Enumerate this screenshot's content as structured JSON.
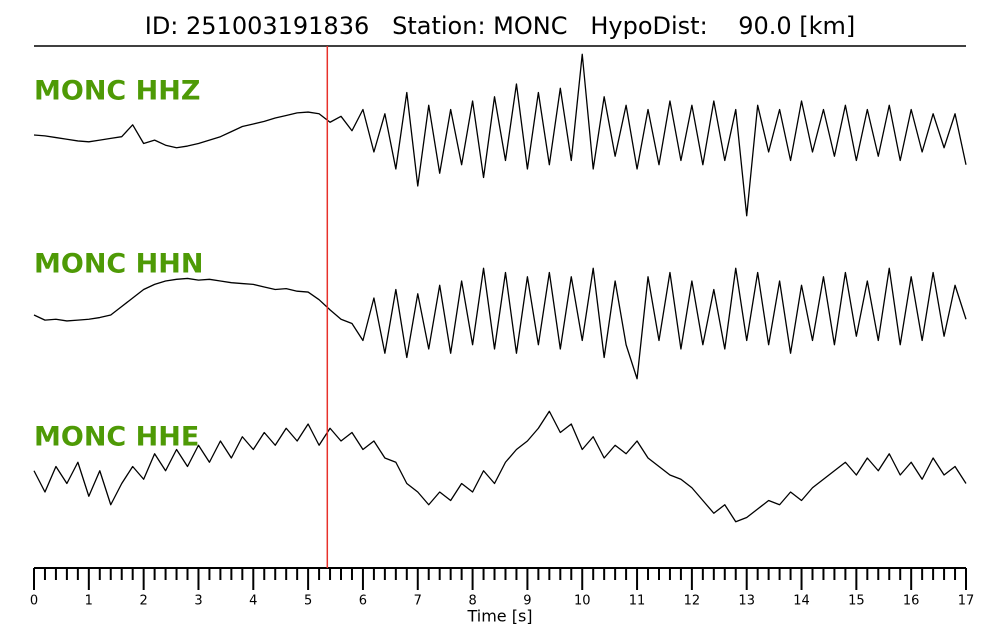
{
  "chart_data": {
    "type": "seismogram",
    "title": "ID: 251003191836   Station: MONC   HypoDist:    90.0 [km]",
    "xlabel": "Time [s]",
    "xlim": [
      0,
      17
    ],
    "xticks": [
      0,
      1,
      2,
      3,
      4,
      5,
      6,
      7,
      8,
      9,
      10,
      11,
      12,
      13,
      14,
      15,
      16,
      17
    ],
    "ylim": [
      -1,
      1
    ],
    "pick": {
      "x": 5.35,
      "color": "#e8312a"
    },
    "x": [
      0,
      0.2,
      0.4,
      0.6,
      0.8,
      1,
      1.2,
      1.4,
      1.6,
      1.8,
      2,
      2.2,
      2.4,
      2.6,
      2.8,
      3,
      3.2,
      3.4,
      3.6,
      3.8,
      4,
      4.2,
      4.4,
      4.6,
      4.8,
      5,
      5.2,
      5.4,
      5.6,
      5.8,
      6,
      6.2,
      6.4,
      6.6,
      6.8,
      7,
      7.2,
      7.4,
      7.6,
      7.8,
      8,
      8.2,
      8.4,
      8.6,
      8.8,
      9,
      9.2,
      9.4,
      9.6,
      9.8,
      10,
      10.2,
      10.4,
      10.6,
      10.8,
      11,
      11.2,
      11.4,
      11.6,
      11.8,
      12,
      12.2,
      12.4,
      12.6,
      12.8,
      13,
      13.2,
      13.4,
      13.6,
      13.8,
      14,
      14.2,
      14.4,
      14.6,
      14.8,
      15,
      15.2,
      15.4,
      15.6,
      15.8,
      16,
      16.2,
      16.4,
      16.6,
      16.8,
      17
    ],
    "series": [
      {
        "name": "MONC HHZ",
        "color": "#4e9a06",
        "values": [
          0,
          -0.01,
          -0.03,
          -0.05,
          -0.07,
          -0.08,
          -0.06,
          -0.04,
          -0.02,
          0.12,
          -0.1,
          -0.06,
          -0.12,
          -0.15,
          -0.13,
          -0.1,
          -0.06,
          -0.02,
          0.04,
          0.1,
          0.13,
          0.16,
          0.2,
          0.23,
          0.26,
          0.27,
          0.25,
          0.15,
          0.22,
          0.05,
          0.3,
          -0.2,
          0.25,
          -0.4,
          0.5,
          -0.6,
          0.35,
          -0.45,
          0.3,
          -0.35,
          0.4,
          -0.5,
          0.45,
          -0.3,
          0.6,
          -0.4,
          0.5,
          -0.35,
          0.55,
          -0.3,
          0.95,
          -0.4,
          0.45,
          -0.25,
          0.35,
          -0.4,
          0.3,
          -0.35,
          0.4,
          -0.3,
          0.35,
          -0.35,
          0.4,
          -0.3,
          0.3,
          -0.95,
          0.35,
          -0.2,
          0.3,
          -0.3,
          0.4,
          -0.2,
          0.3,
          -0.25,
          0.35,
          -0.3,
          0.3,
          -0.25,
          0.35,
          -0.3,
          0.3,
          -0.2,
          0.25,
          -0.15,
          0.25,
          -0.35
        ]
      },
      {
        "name": "MONC HHN",
        "color": "#4e9a06",
        "values": [
          0,
          -0.06,
          -0.05,
          -0.07,
          -0.06,
          -0.05,
          -0.03,
          0,
          0.1,
          0.2,
          0.3,
          0.36,
          0.4,
          0.42,
          0.43,
          0.41,
          0.42,
          0.4,
          0.38,
          0.37,
          0.36,
          0.33,
          0.3,
          0.31,
          0.28,
          0.27,
          0.18,
          0.06,
          -0.05,
          -0.1,
          -0.3,
          0.2,
          -0.45,
          0.3,
          -0.5,
          0.25,
          -0.4,
          0.35,
          -0.45,
          0.4,
          -0.35,
          0.55,
          -0.4,
          0.5,
          -0.45,
          0.45,
          -0.35,
          0.5,
          -0.4,
          0.45,
          -0.3,
          0.55,
          -0.5,
          0.4,
          -0.35,
          -0.75,
          0.45,
          -0.3,
          0.5,
          -0.4,
          0.4,
          -0.35,
          0.3,
          -0.4,
          0.55,
          -0.3,
          0.5,
          -0.35,
          0.4,
          -0.45,
          0.35,
          -0.3,
          0.45,
          -0.35,
          0.5,
          -0.25,
          0.4,
          -0.3,
          0.55,
          -0.35,
          0.45,
          -0.3,
          0.5,
          -0.25,
          0.35,
          -0.05
        ]
      },
      {
        "name": "MONC HHE",
        "color": "#4e9a06",
        "values": [
          0.05,
          -0.2,
          0.1,
          -0.1,
          0.15,
          -0.25,
          0.05,
          -0.35,
          -0.1,
          0.1,
          -0.05,
          0.25,
          0.05,
          0.3,
          0.1,
          0.35,
          0.15,
          0.4,
          0.2,
          0.45,
          0.3,
          0.5,
          0.35,
          0.55,
          0.4,
          0.6,
          0.35,
          0.55,
          0.4,
          0.5,
          0.3,
          0.4,
          0.2,
          0.15,
          -0.1,
          -0.2,
          -0.35,
          -0.2,
          -0.3,
          -0.1,
          -0.2,
          0.05,
          -0.1,
          0.15,
          0.3,
          0.4,
          0.55,
          0.75,
          0.5,
          0.6,
          0.3,
          0.45,
          0.2,
          0.35,
          0.25,
          0.4,
          0.2,
          0.1,
          0,
          -0.05,
          -0.15,
          -0.3,
          -0.45,
          -0.35,
          -0.55,
          -0.5,
          -0.4,
          -0.3,
          -0.35,
          -0.2,
          -0.3,
          -0.15,
          -0.05,
          0.05,
          0.15,
          0,
          0.2,
          0.05,
          0.25,
          0,
          0.15,
          -0.05,
          0.2,
          0,
          0.1,
          -0.1
        ]
      }
    ]
  }
}
